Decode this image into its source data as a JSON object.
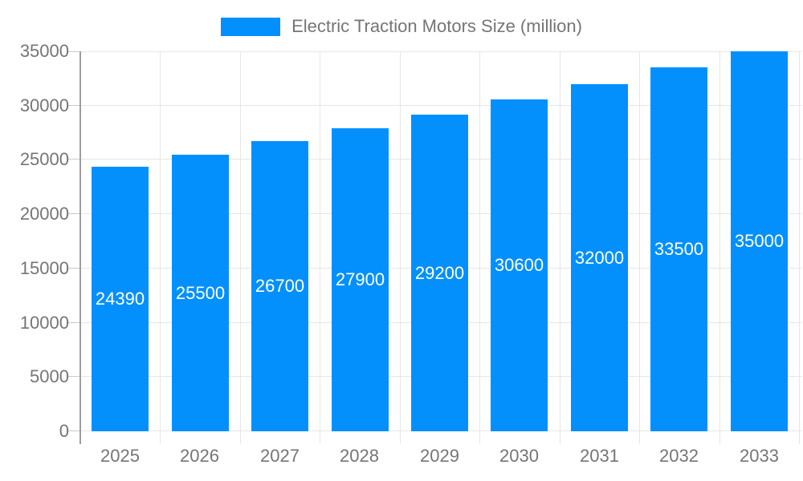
{
  "legend": {
    "label": "Electric Traction Motors Size (million)"
  },
  "chart_data": {
    "type": "bar",
    "title": "Electric Traction Motors Size (million)",
    "categories": [
      "2025",
      "2026",
      "2027",
      "2028",
      "2029",
      "2030",
      "2031",
      "2032",
      "2033"
    ],
    "series": [
      {
        "name": "Electric Traction Motors Size (million)",
        "values": [
          24390,
          25500,
          26700,
          27900,
          29200,
          30600,
          32000,
          33500,
          35000
        ]
      }
    ],
    "xlabel": "",
    "ylabel": "",
    "ylim": [
      0,
      35000
    ],
    "yticks": [
      0,
      5000,
      10000,
      15000,
      20000,
      25000,
      30000,
      35000
    ],
    "grid": true,
    "legend_position": "top-center",
    "value_label_position": "inside-center",
    "colors": {
      "bar": "#0390FC",
      "axis_text": "#757575",
      "gridline": "#e6e6e6",
      "axis_line": "#9e9e9e",
      "tick": "#c9c9c9",
      "value_label": "#ffffff",
      "background": "#ffffff"
    }
  }
}
